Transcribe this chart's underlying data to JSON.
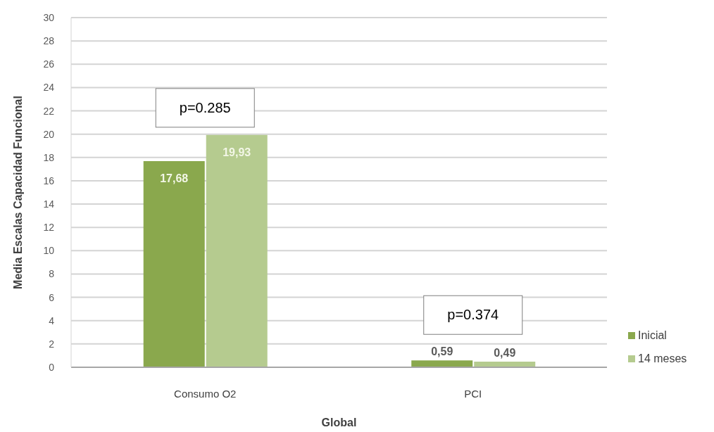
{
  "chart_data": {
    "type": "bar",
    "categories": [
      "Consumo O2",
      "PCI"
    ],
    "series": [
      {
        "name": "Inicial",
        "color": "#8aa84d",
        "values": [
          17.68,
          0.59
        ],
        "value_labels": [
          "17,68",
          "0,59"
        ]
      },
      {
        "name": "14 meses",
        "color": "#b5cb8f",
        "values": [
          19.93,
          0.49
        ],
        "value_labels": [
          "19,93",
          "0,49"
        ]
      }
    ],
    "xlabel": "Global",
    "ylabel": "Media Escalas Capacidad Funcional",
    "ylim": [
      0,
      30
    ],
    "yticks": [
      0,
      2,
      4,
      6,
      8,
      10,
      12,
      14,
      16,
      18,
      20,
      22,
      24,
      26,
      28,
      30
    ],
    "grid": "y",
    "legend": "bottom right",
    "annotations": [
      "p=0.285",
      "p=0.374"
    ]
  }
}
